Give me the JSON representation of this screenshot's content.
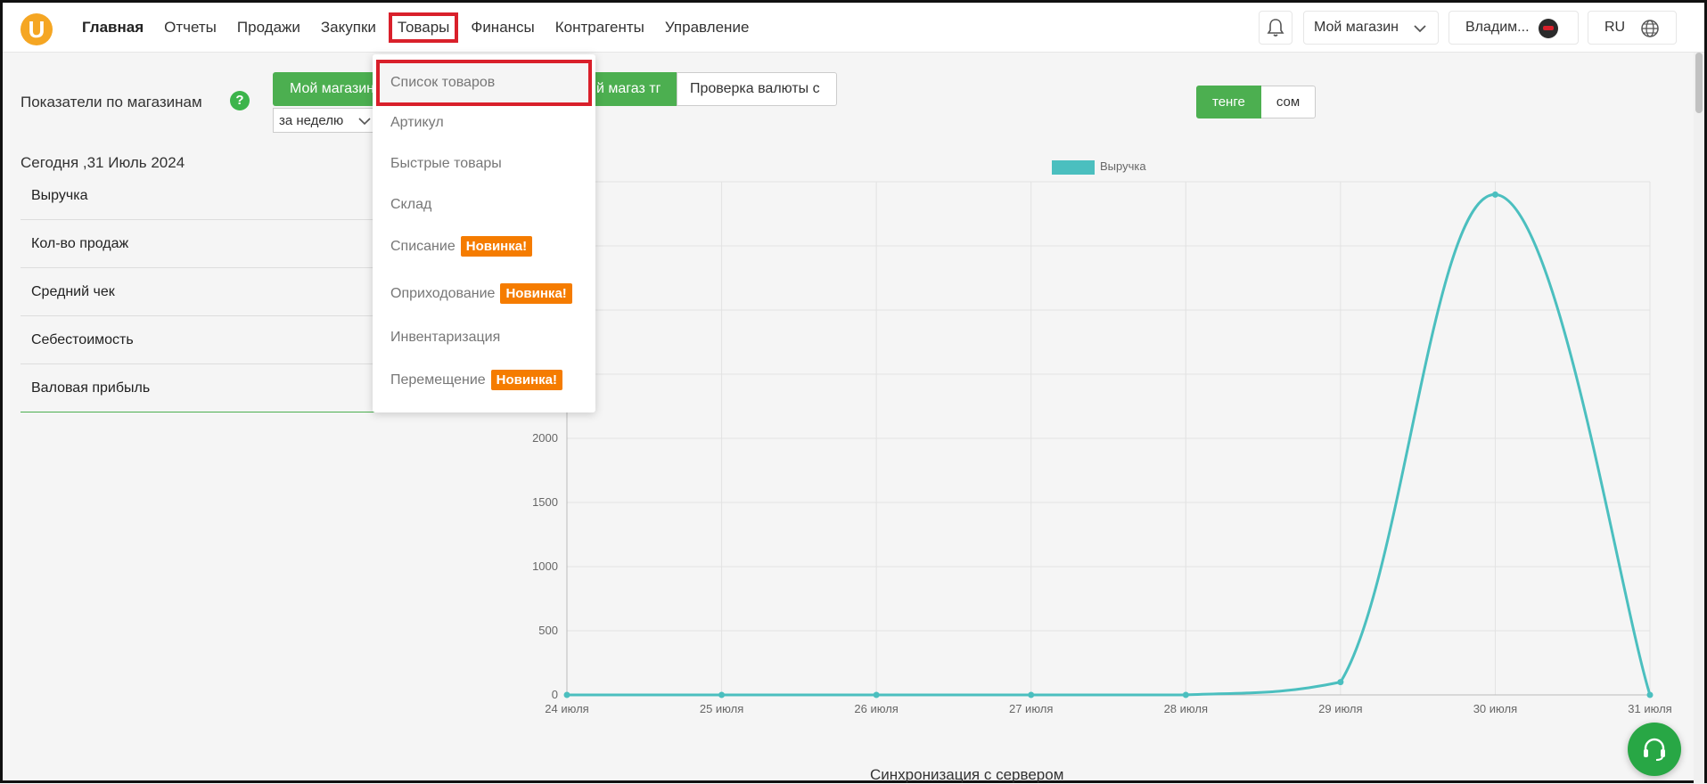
{
  "nav": {
    "logo": "U",
    "items": [
      {
        "label": "Главная",
        "active": true
      },
      {
        "label": "Отчеты"
      },
      {
        "label": "Продажи"
      },
      {
        "label": "Закупки"
      },
      {
        "label": "Товары",
        "highlighted": true
      },
      {
        "label": "Финансы"
      },
      {
        "label": "Контрагенты"
      },
      {
        "label": "Управление"
      }
    ]
  },
  "header_right": {
    "store": "Мой магазин",
    "user": "Владим...",
    "lang": "RU"
  },
  "dropdown": {
    "items": [
      {
        "label": "Список товаров",
        "highlighted": true
      },
      {
        "label": "Артикул"
      },
      {
        "label": "Быстрые товары"
      },
      {
        "label": "Склад"
      },
      {
        "label": "Списание",
        "badge": "Новинка!"
      },
      {
        "label": "Оприходование",
        "badge": "Новинка!"
      },
      {
        "label": "Инвентаризация"
      },
      {
        "label": "Перемещение",
        "badge": "Новинка!"
      }
    ]
  },
  "main": {
    "section_title": "Показатели по магазинам",
    "store_buttons": [
      "Мой магазин",
      "й магаз тг",
      "Проверка валюты с"
    ],
    "period": "за неделю",
    "currency": [
      "тенге",
      "сом"
    ],
    "today": "Сегодня ,31 Июль 2024",
    "metrics": [
      "Выручка",
      "Кол-во продаж",
      "Средний чек",
      "Себестоимость",
      "Валовая прибыль"
    ],
    "sync_text": "Синхронизация с сервером"
  },
  "colors": {
    "accent": "#4caf50",
    "badge": "#f57c00",
    "highlight": "#d9202b",
    "series": "#4bbfbf"
  },
  "chart_data": {
    "type": "line",
    "x": [
      "24 июля",
      "25 июля",
      "26 июля",
      "27 июля",
      "28 июля",
      "29 июля",
      "30 июля",
      "31 июля"
    ],
    "series": [
      {
        "name": "Выручка",
        "values": [
          0,
          0,
          0,
          0,
          0,
          100,
          3900,
          0
        ]
      }
    ],
    "yticks": [
      0,
      500,
      1000,
      1500,
      2000
    ],
    "ylim": [
      0,
      4000
    ],
    "legend": "top-center",
    "grid": true
  }
}
